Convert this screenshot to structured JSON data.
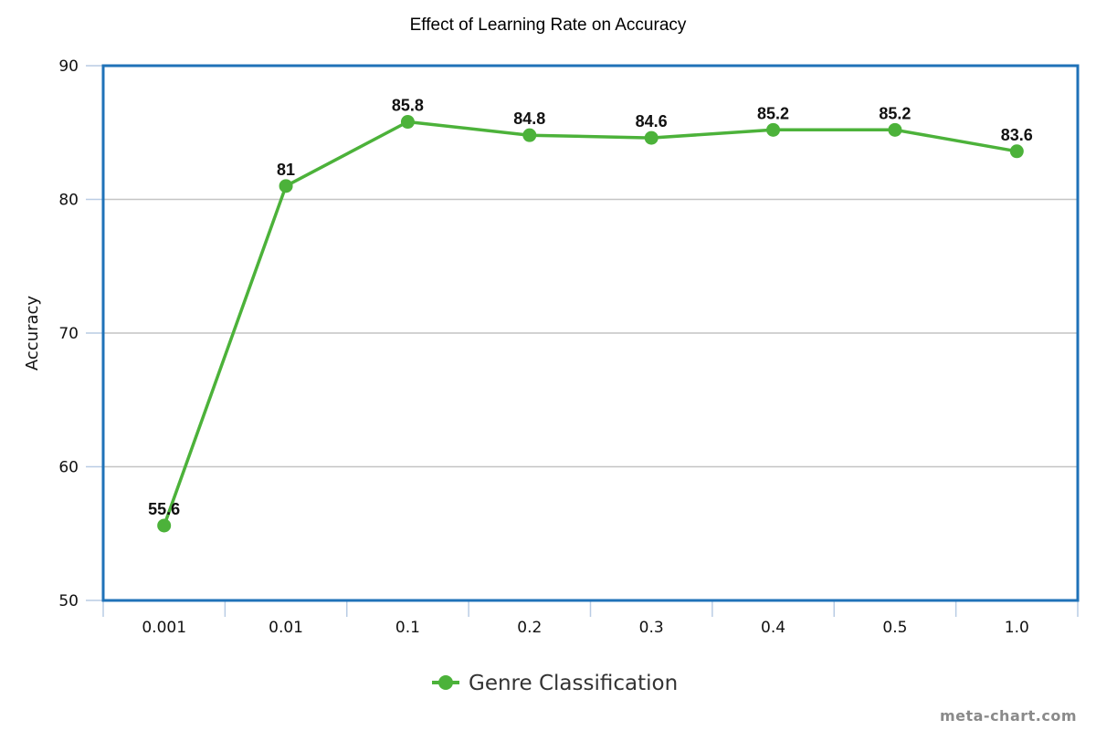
{
  "chart_data": {
    "type": "line",
    "title": "Effect of Learning Rate on Accuracy",
    "xlabel": "",
    "ylabel": "Accuracy",
    "categories": [
      "0.001",
      "0.01",
      "0.1",
      "0.2",
      "0.3",
      "0.4",
      "0.5",
      "1.0"
    ],
    "series": [
      {
        "name": "Genre Classification",
        "values": [
          55.6,
          81,
          85.8,
          84.8,
          84.6,
          85.2,
          85.2,
          83.6
        ],
        "color": "#4cb23a"
      }
    ],
    "ylim": [
      50,
      90
    ],
    "yticks": [
      50,
      60,
      70,
      80,
      90
    ],
    "grid": true,
    "legend_position": "bottom-center",
    "data_labels": true
  },
  "colors": {
    "plot_border": "#1f72b8",
    "grid": "#c4c4c4",
    "axis_ticks": "#b9cce4",
    "line": "#4cb23a"
  },
  "watermark": "meta-chart.com"
}
